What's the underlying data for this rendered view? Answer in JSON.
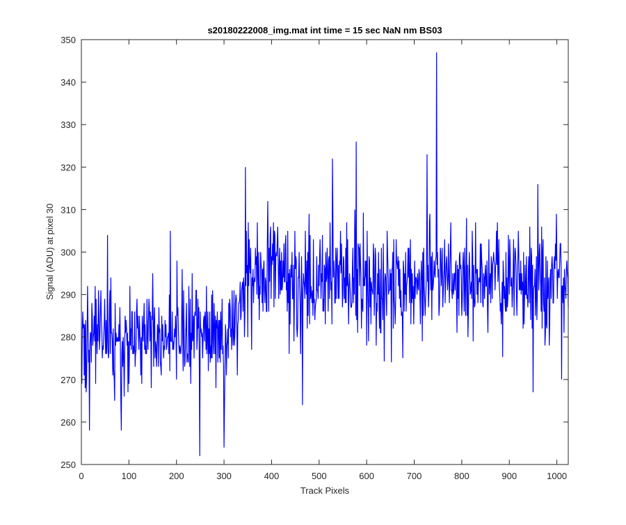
{
  "chart_data": {
    "type": "line",
    "title": "s20180222008_img.mat int time = 15 sec  NaN nm BS03",
    "xlabel": "Track Pixels",
    "ylabel": "Signal (ADU) at pixel 30",
    "xlim": [
      0,
      1024
    ],
    "ylim": [
      250,
      350
    ],
    "xticks": [
      0,
      100,
      200,
      300,
      400,
      500,
      600,
      700,
      800,
      900,
      1000
    ],
    "yticks": [
      250,
      260,
      270,
      280,
      290,
      300,
      310,
      320,
      330,
      340,
      350
    ],
    "grid": false,
    "legend": "none",
    "line_color": "#0000FF",
    "series": [
      {
        "anchors_x": [
          0,
          100,
          200,
          250,
          300,
          320,
          350,
          400,
          450,
          500,
          550,
          600,
          650,
          700,
          750,
          800,
          850,
          900,
          950,
          1024
        ],
        "anchors_y": [
          279,
          280,
          281,
          280,
          281,
          284,
          293,
          296,
          292,
          293,
          294,
          292,
          291,
          293,
          295,
          294,
          293,
          292,
          293,
          292
        ],
        "noise_amplitude": 6.5,
        "extremes": [
          {
            "x": 17,
            "y": 258
          },
          {
            "x": 55,
            "y": 304
          },
          {
            "x": 84,
            "y": 258
          },
          {
            "x": 187,
            "y": 305
          },
          {
            "x": 249,
            "y": 252
          },
          {
            "x": 300,
            "y": 254
          },
          {
            "x": 345,
            "y": 320
          },
          {
            "x": 465,
            "y": 264
          },
          {
            "x": 528,
            "y": 322
          },
          {
            "x": 578,
            "y": 326
          },
          {
            "x": 727,
            "y": 323
          },
          {
            "x": 747,
            "y": 347
          },
          {
            "x": 950,
            "y": 267
          },
          {
            "x": 960,
            "y": 316
          },
          {
            "x": 1010,
            "y": 270
          }
        ]
      }
    ]
  }
}
